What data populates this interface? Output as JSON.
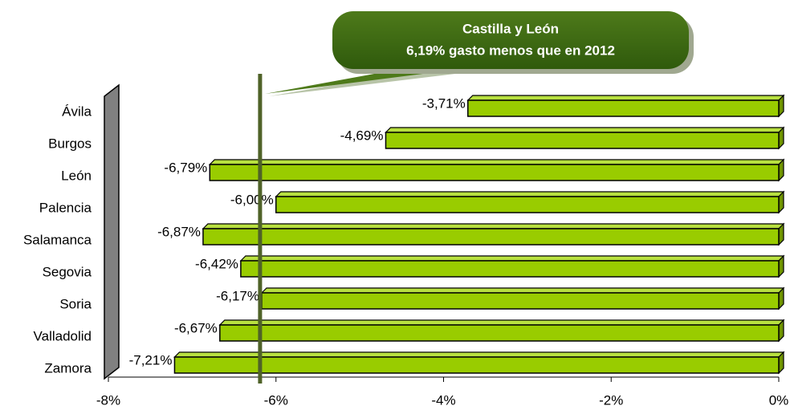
{
  "chart_data": {
    "type": "bar",
    "orientation": "horizontal",
    "categories": [
      "Ávila",
      "Burgos",
      "León",
      "Palencia",
      "Salamanca",
      "Segovia",
      "Soria",
      "Valladolid",
      "Zamora"
    ],
    "values": [
      -3.71,
      -4.69,
      -6.79,
      -6.0,
      -6.87,
      -6.42,
      -6.17,
      -6.67,
      -7.21
    ],
    "value_labels": [
      "-3,71%",
      "-4,69%",
      "-6,79%",
      "-6,00%",
      "-6,87%",
      "-6,42%",
      "-6,17%",
      "-6,67%",
      "-7,21%"
    ],
    "color": "#99cc00",
    "xlim": [
      -8,
      0
    ],
    "xticks": [
      {
        "value": -8,
        "label": "-8%"
      },
      {
        "value": -6,
        "label": "-6%"
      },
      {
        "value": -4,
        "label": "-4%"
      },
      {
        "value": -2,
        "label": "-2%"
      },
      {
        "value": 0,
        "label": "0%"
      }
    ],
    "reference_line": {
      "value": -6.19,
      "color": "#4f6228"
    },
    "annotation": [
      "Castilla y León",
      "6,19% gasto menos que en 2012"
    ]
  }
}
